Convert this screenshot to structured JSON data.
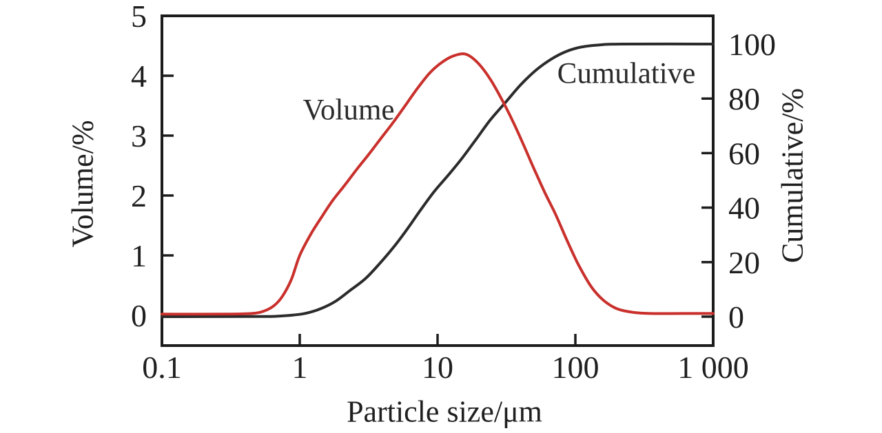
{
  "figure": {
    "title": "",
    "background": "#ffffff"
  },
  "colors": {
    "axis": "#1c1c1c",
    "text": "#1f1f1f",
    "volume_curve": "#c9302c",
    "cumulative_curve": "#2b2b2b"
  },
  "chart_data": {
    "type": "line",
    "title": "",
    "xlabel": "Particle size/μm",
    "x_scale": "log",
    "x_range": [
      0.1,
      1000
    ],
    "x_ticks": [
      0.1,
      1,
      10,
      100,
      1000
    ],
    "x_tick_labels": [
      "0.1",
      "1",
      "10",
      "100",
      "1 000"
    ],
    "grid": false,
    "legend_position": "none",
    "left_axis": {
      "label": "Volume/%",
      "range": [
        0,
        5
      ],
      "ticks": [
        0,
        1,
        2,
        3,
        4,
        5
      ]
    },
    "right_axis": {
      "label": "Cumulative/%",
      "range": [
        0,
        100
      ],
      "ticks": [
        0,
        20,
        40,
        60,
        80,
        100
      ]
    },
    "series": [
      {
        "name": "Cumulative",
        "axis": "right",
        "color": "#2b2b2b",
        "units": "%",
        "points": [
          [
            0.1,
            0
          ],
          [
            0.5,
            0.05
          ],
          [
            0.7,
            0.2
          ],
          [
            0.9,
            0.6
          ],
          [
            1.1,
            1.2
          ],
          [
            1.4,
            2.8
          ],
          [
            1.8,
            5.5
          ],
          [
            2.3,
            9.5
          ],
          [
            3,
            14
          ],
          [
            3.8,
            19.5
          ],
          [
            4.8,
            25.5
          ],
          [
            6,
            32
          ],
          [
            7.5,
            39
          ],
          [
            9.5,
            46
          ],
          [
            12,
            52
          ],
          [
            15,
            58
          ],
          [
            19,
            65
          ],
          [
            24,
            72
          ],
          [
            31,
            78.5
          ],
          [
            40,
            85
          ],
          [
            52,
            90.5
          ],
          [
            67,
            94.5
          ],
          [
            85,
            97.2
          ],
          [
            110,
            98.9
          ],
          [
            150,
            99.7
          ],
          [
            220,
            100
          ],
          [
            1000,
            100
          ]
        ]
      },
      {
        "name": "Volume",
        "axis": "left",
        "color": "#c9302c",
        "units": "%",
        "points": [
          [
            0.1,
            0.02
          ],
          [
            0.3,
            0.02
          ],
          [
            0.45,
            0.03
          ],
          [
            0.55,
            0.07
          ],
          [
            0.65,
            0.16
          ],
          [
            0.75,
            0.32
          ],
          [
            0.87,
            0.6
          ],
          [
            1.0,
            1.0
          ],
          [
            1.2,
            1.35
          ],
          [
            1.45,
            1.65
          ],
          [
            1.75,
            1.93
          ],
          [
            2.1,
            2.16
          ],
          [
            2.6,
            2.44
          ],
          [
            3.2,
            2.7
          ],
          [
            3.9,
            2.96
          ],
          [
            4.8,
            3.23
          ],
          [
            5.9,
            3.52
          ],
          [
            7.2,
            3.8
          ],
          [
            8.8,
            4.05
          ],
          [
            10.7,
            4.22
          ],
          [
            13,
            4.33
          ],
          [
            16,
            4.36
          ],
          [
            19.5,
            4.22
          ],
          [
            24,
            3.95
          ],
          [
            29,
            3.62
          ],
          [
            35,
            3.25
          ],
          [
            42,
            2.85
          ],
          [
            50,
            2.45
          ],
          [
            60,
            2.05
          ],
          [
            72,
            1.68
          ],
          [
            87,
            1.25
          ],
          [
            105,
            0.85
          ],
          [
            130,
            0.48
          ],
          [
            160,
            0.25
          ],
          [
            200,
            0.11
          ],
          [
            260,
            0.05
          ],
          [
            350,
            0.03
          ],
          [
            600,
            0.03
          ],
          [
            1000,
            0.03
          ]
        ]
      }
    ],
    "annotations": [
      {
        "text": "Volume",
        "series": "Volume"
      },
      {
        "text": "Cumulative",
        "series": "Cumulative"
      }
    ]
  }
}
